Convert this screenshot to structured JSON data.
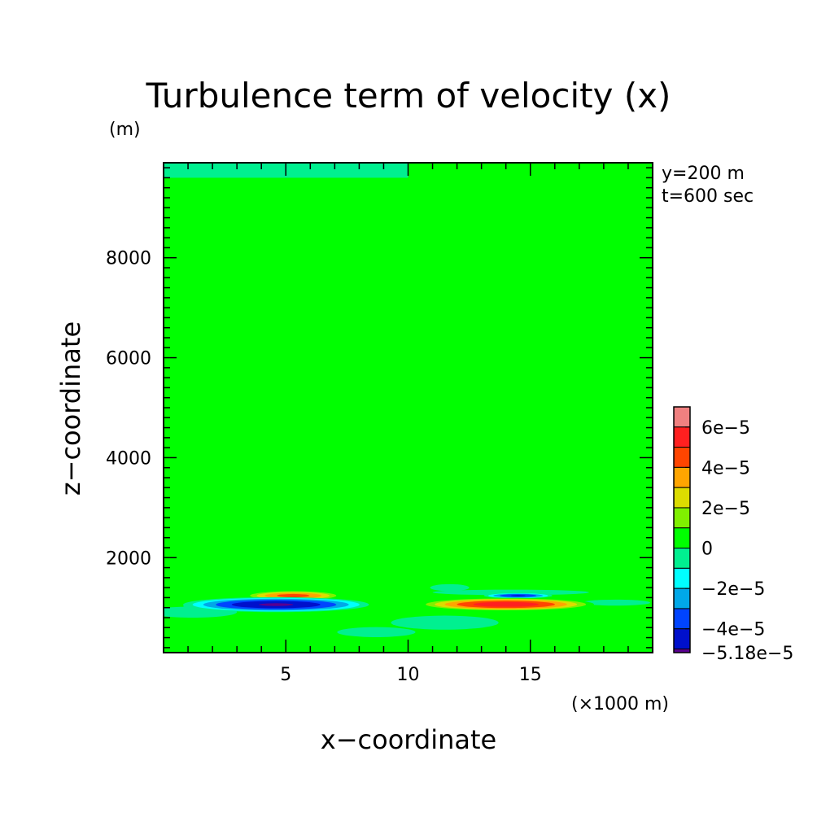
{
  "chart_data": {
    "type": "heatmap",
    "title": "Turbulence term of velocity (x)",
    "ylabel_unit": "(m)",
    "xlabel": "x−coordinate",
    "ylabel": "z−coordinate",
    "x_unit": "(×1000 m)",
    "annotations": [
      "y=200 m",
      "t=600 sec"
    ],
    "xlim": [
      0,
      20
    ],
    "ylim": [
      100,
      9900
    ],
    "xticks": [
      5,
      10,
      15
    ],
    "yticks": [
      2000,
      4000,
      6000,
      8000
    ],
    "x_minor_step": 1,
    "y_minor_step": 200,
    "background_value": 0,
    "top_band": {
      "x": [
        0,
        10
      ],
      "z": [
        9600,
        9900
      ],
      "level": "-1e-5 to 0"
    },
    "features": [
      {
        "x": 8.0,
        "z": 1280,
        "rx": 1.8,
        "rz": 60,
        "value": 8e-06
      },
      {
        "x": 5.3,
        "z": 1240,
        "rx": 2.0,
        "rz": 100,
        "value": 4.5e-05
      },
      {
        "x": 1.2,
        "z": 910,
        "rx": 1.8,
        "rz": 110,
        "value": -8e-06
      },
      {
        "x": 2.4,
        "z": 1030,
        "rx": 1.6,
        "rz": 50,
        "value": -8e-06
      },
      {
        "x": 4.6,
        "z": 1060,
        "rx": 3.8,
        "rz": 150,
        "value": -5.18e-05
      },
      {
        "x": 11.7,
        "z": 1400,
        "rx": 0.8,
        "rz": 70,
        "value": -8e-06
      },
      {
        "x": 14.2,
        "z": 1305,
        "rx": 3.2,
        "rz": 55,
        "value": -9e-06
      },
      {
        "x": 14.5,
        "z": 1240,
        "rx": 1.4,
        "rz": 55,
        "value": -4.2e-05
      },
      {
        "x": 18.5,
        "z": 1100,
        "rx": 1.4,
        "rz": 60,
        "value": -9e-06
      },
      {
        "x": 14.0,
        "z": 1065,
        "rx": 3.6,
        "rz": 130,
        "value": 5.8e-05
      },
      {
        "x": 11.5,
        "z": 700,
        "rx": 2.2,
        "rz": 140,
        "value": -8e-06
      },
      {
        "x": 8.7,
        "z": 510,
        "rx": 1.6,
        "rz": 100,
        "value": -8e-06
      }
    ],
    "colorbar": {
      "tick_labels": [
        "6e−5",
        "4e−5",
        "2e−5",
        "0",
        "−2e−5",
        "−4e−5",
        "−5.18e−5"
      ],
      "tick_values": [
        6e-05,
        4e-05,
        2e-05,
        0,
        -2e-05,
        -4e-05,
        -5.18e-05
      ],
      "min": -5.18e-05,
      "max": 7e-05,
      "levels": [
        {
          "lo": 6e-05,
          "hi": 7e-05,
          "color": "#f08080"
        },
        {
          "lo": 5e-05,
          "hi": 6e-05,
          "color": "#ff2020"
        },
        {
          "lo": 4e-05,
          "hi": 5e-05,
          "color": "#ff4500"
        },
        {
          "lo": 3e-05,
          "hi": 4e-05,
          "color": "#ffa500"
        },
        {
          "lo": 2e-05,
          "hi": 3e-05,
          "color": "#dcdc00"
        },
        {
          "lo": 1e-05,
          "hi": 2e-05,
          "color": "#80f000"
        },
        {
          "lo": 0,
          "hi": 1e-05,
          "color": "#00ff00"
        },
        {
          "lo": -1e-05,
          "hi": 0,
          "color": "#00f090"
        },
        {
          "lo": -2e-05,
          "hi": -1e-05,
          "color": "#00ffff"
        },
        {
          "lo": -3e-05,
          "hi": -2e-05,
          "color": "#00a8e8"
        },
        {
          "lo": -4e-05,
          "hi": -3e-05,
          "color": "#0044ff"
        },
        {
          "lo": -5e-05,
          "hi": -4e-05,
          "color": "#0010cc"
        },
        {
          "lo": -5.18e-05,
          "hi": -5e-05,
          "color": "#5a0090"
        }
      ]
    }
  }
}
